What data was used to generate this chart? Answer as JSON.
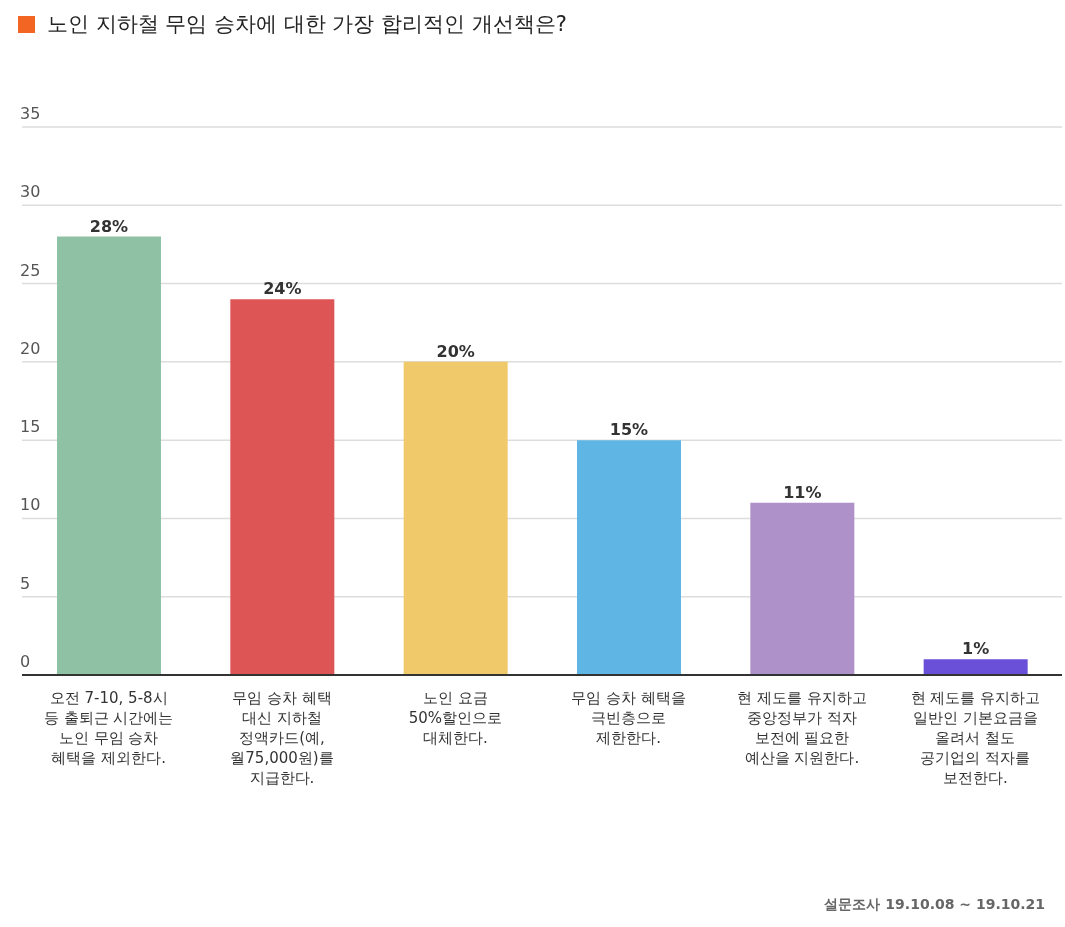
{
  "chart_data": {
    "type": "bar",
    "title": "노인 지하철 무임 승차에 대한 가장 합리적인 개선책은?",
    "categories": [
      "오전 7-10, 5-8시 등 출퇴근 시간에는 노인 무임 승차 혜택을 제외한다.",
      "무임 승차 혜택 대신 지하철 정액카드(예, 월75,000원)를 지급한다.",
      "노인 요금 50%할인으로 대체한다.",
      "무임 승차 혜택을 극빈층으로 제한한다.",
      "현 제도를 유지하고 중앙정부가 적자 보전에 필요한 예산을 지원한다.",
      "현 제도를 유지하고 일반인 기본요금을 올려서 철도 공기업의 적자를 보전한다."
    ],
    "values": [
      28,
      24,
      20,
      15,
      11,
      1
    ],
    "colors": [
      "#8fc2a5",
      "#de5555",
      "#f0c96a",
      "#5fb5e3",
      "#ad91c8",
      "#6a4fd8"
    ],
    "value_labels": [
      "28%",
      "24%",
      "20%",
      "15%",
      "11%",
      "1%"
    ],
    "ylim": [
      0,
      35
    ],
    "yticks": [
      0,
      5,
      10,
      15,
      20,
      25,
      30,
      35
    ],
    "grid": "y",
    "legend": false,
    "annotations": [
      "설문조사 19.10.08 ~ 19.10.21"
    ]
  }
}
